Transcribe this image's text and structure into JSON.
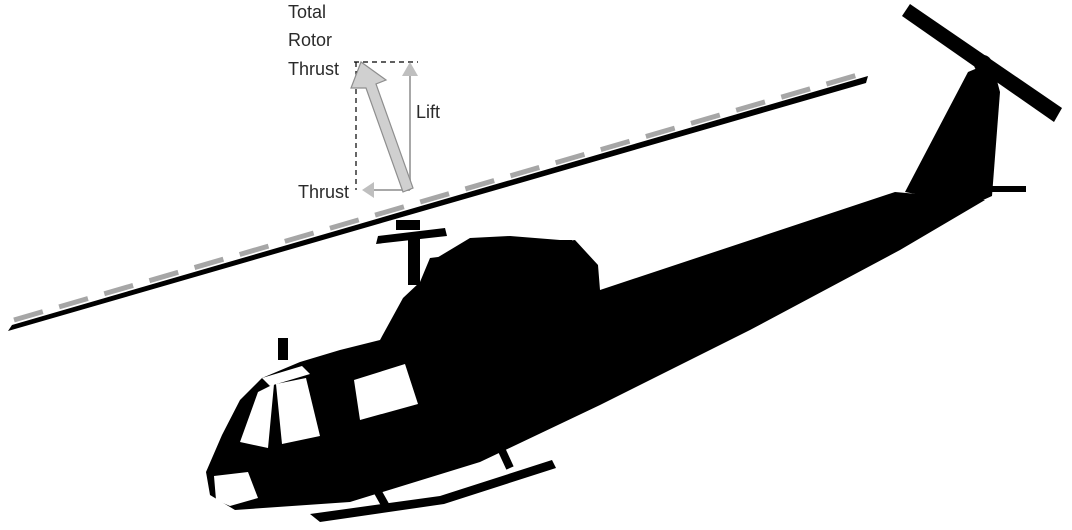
{
  "diagram": {
    "labels": {
      "total_rotor_thrust": [
        "Total",
        "Rotor",
        "Thrust"
      ],
      "lift": "Lift",
      "thrust": "Thrust"
    },
    "colors": {
      "silhouette": "#000000",
      "tip_path_line": "#a6a6a6",
      "total_thrust_arrow": "#d0d0d0",
      "component_arrows": "#bfbfbf",
      "construction_lines": "#000000",
      "windows": "#ffffff"
    },
    "icons": {
      "helicopter": "helicopter-silhouette-icon"
    }
  }
}
